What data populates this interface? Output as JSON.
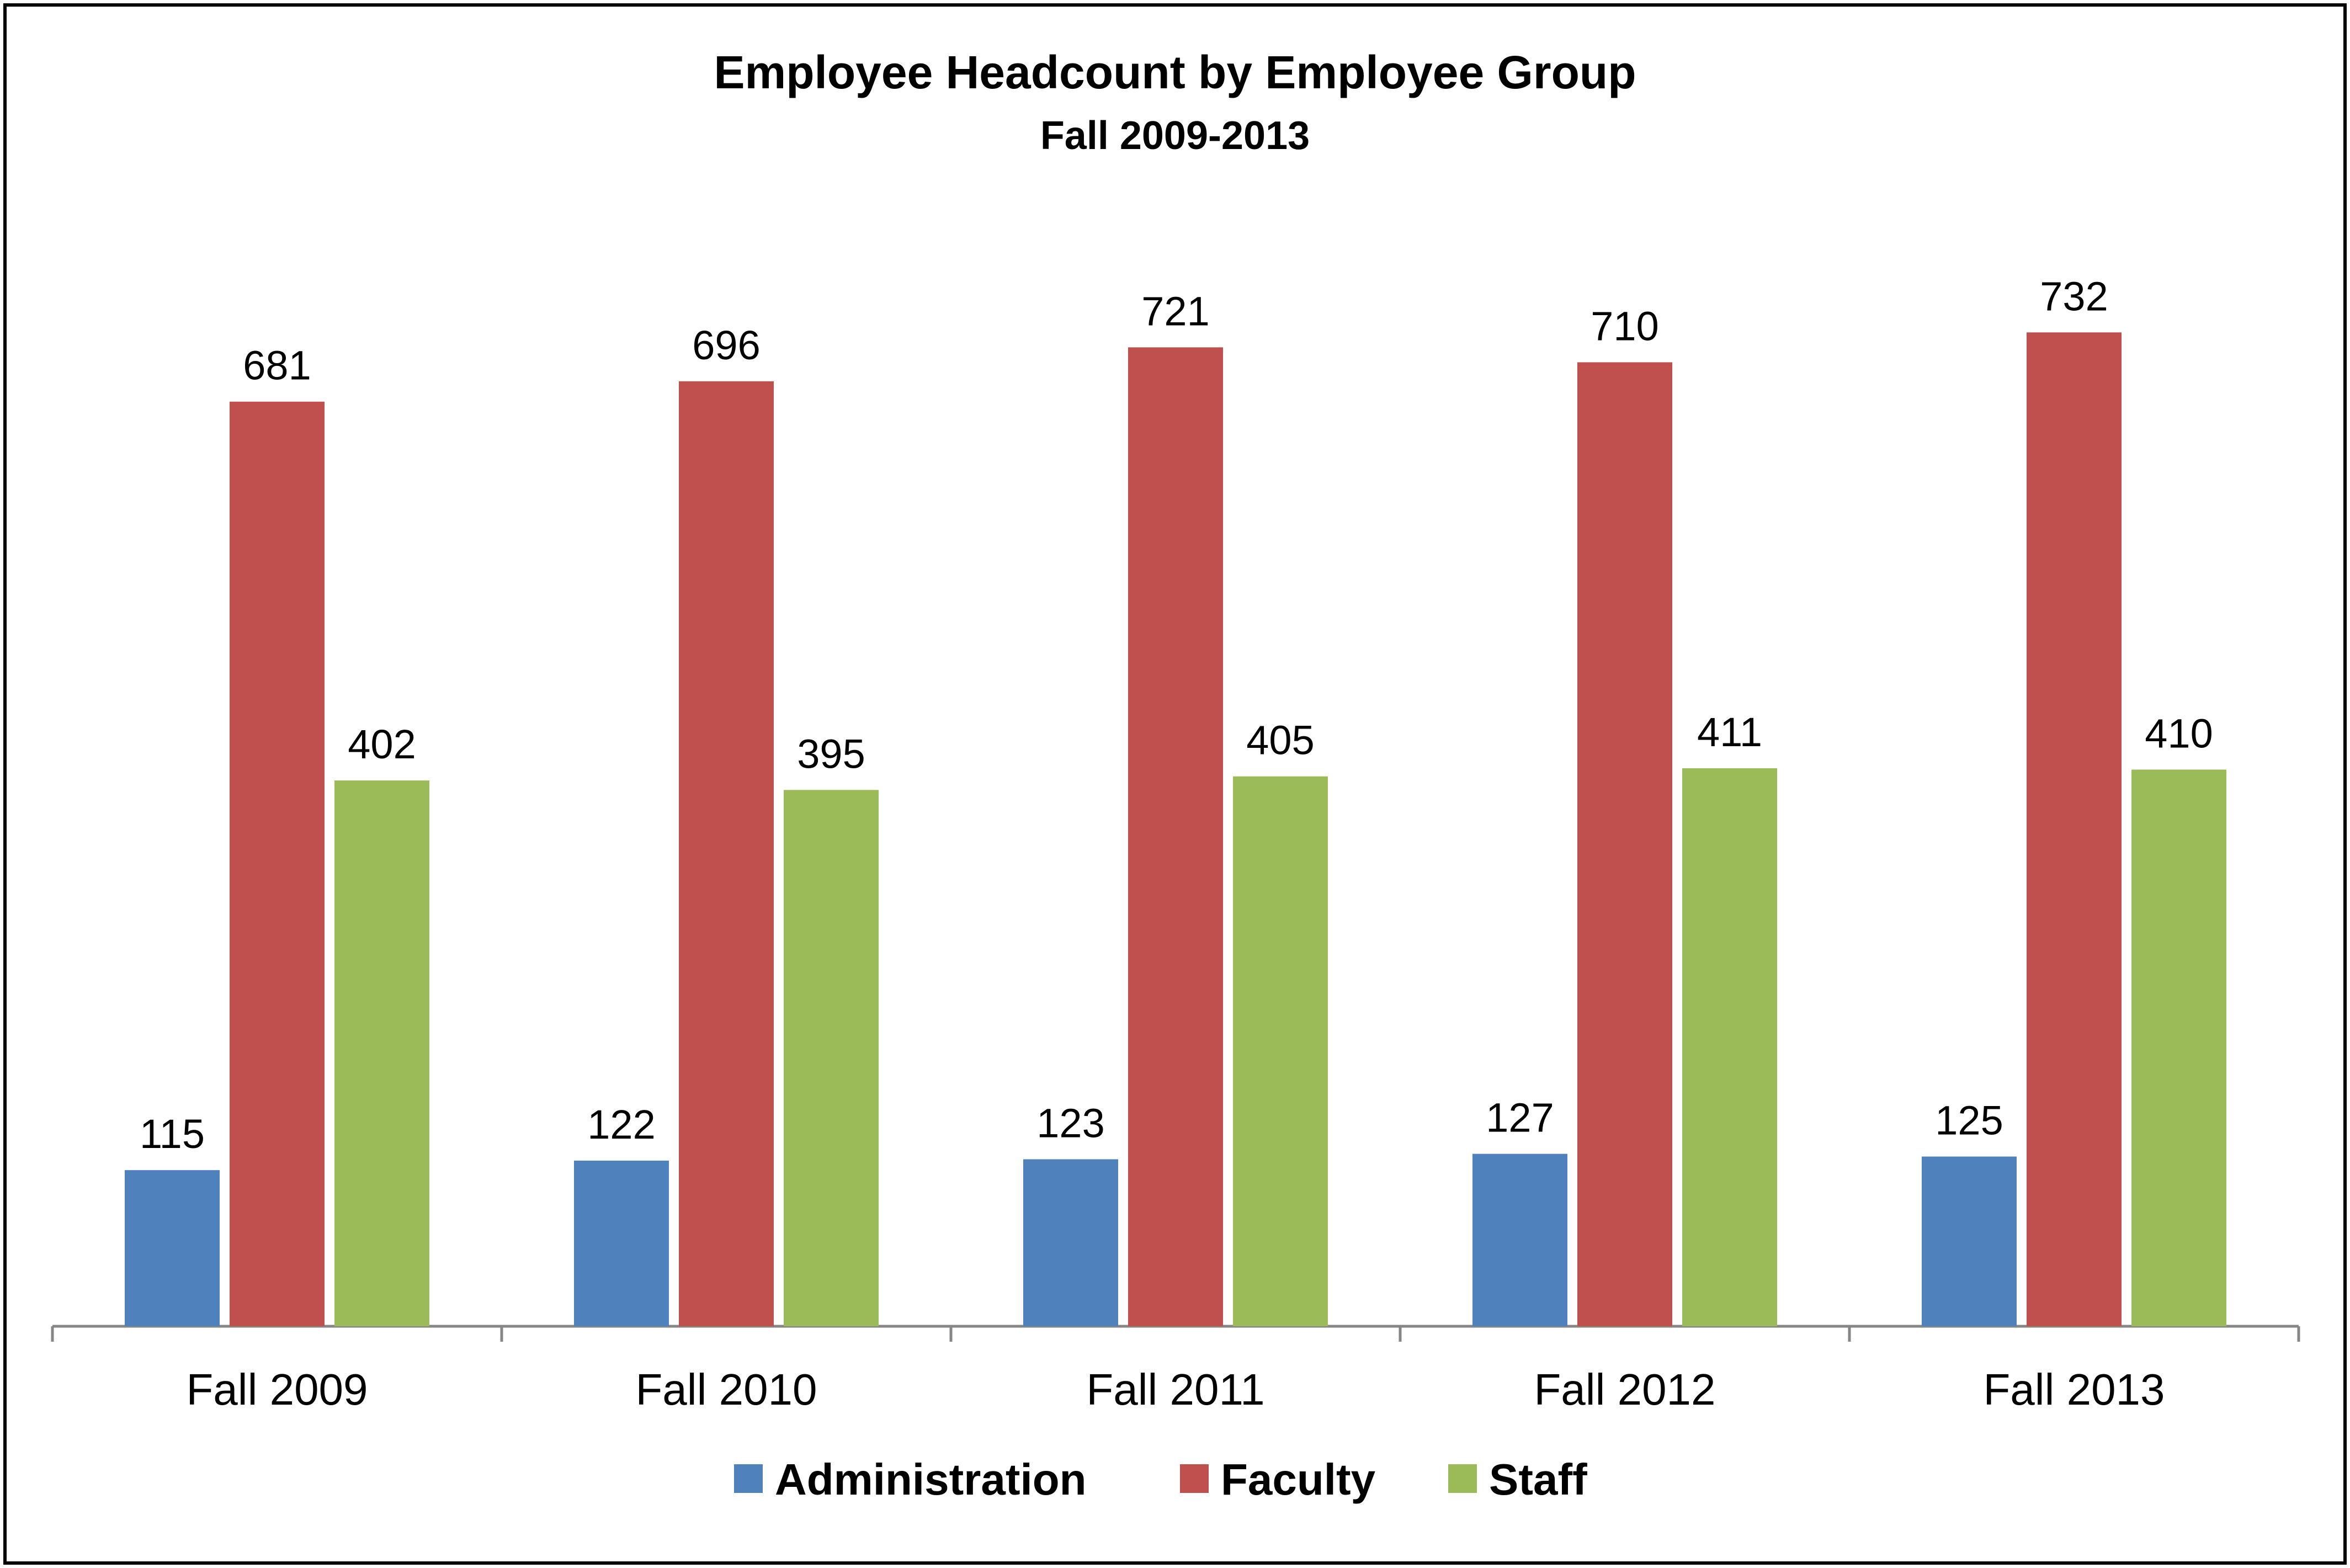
{
  "chart_data": {
    "type": "bar",
    "title": "Employee Headcount by Employee Group",
    "subtitle": "Fall 2009-2013",
    "xlabel": "",
    "ylabel": "",
    "ylim": [
      0,
      800
    ],
    "grid": false,
    "legend_position": "bottom",
    "categories": [
      "Fall 2009",
      "Fall 2010",
      "Fall 2011",
      "Fall 2012",
      "Fall 2013"
    ],
    "series": [
      {
        "name": "Administration",
        "color": "#4F81BD",
        "values": [
          115,
          122,
          123,
          127,
          125
        ]
      },
      {
        "name": "Faculty",
        "color": "#C0504D",
        "values": [
          681,
          696,
          721,
          710,
          732
        ]
      },
      {
        "name": "Staff",
        "color": "#9BBB59",
        "values": [
          402,
          395,
          405,
          411,
          410
        ]
      }
    ]
  }
}
